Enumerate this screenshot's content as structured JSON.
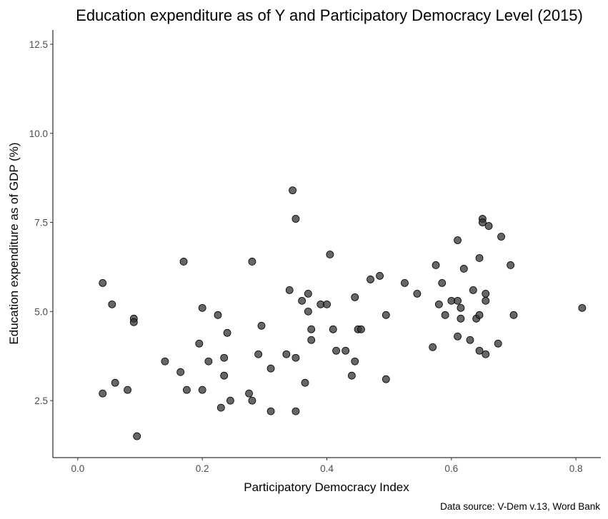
{
  "chart_data": {
    "type": "scatter",
    "title": "Education expenditure as of Y and Participatory Democracy Level (2015)",
    "xlabel": "Participatory Democracy Index",
    "ylabel": "Education expenditure as of GDP (%)",
    "caption": "Data source: V-Dem v.13, Word Bank",
    "xlim": [
      -0.04,
      0.84
    ],
    "ylim": [
      0.9,
      12.9
    ],
    "xticks": [
      0.0,
      0.2,
      0.4,
      0.6,
      0.8
    ],
    "xtick_labels": [
      "0.0",
      "0.2",
      "0.4",
      "0.6",
      "0.8"
    ],
    "yticks": [
      2.5,
      5.0,
      7.5,
      10.0,
      12.5
    ],
    "ytick_labels": [
      "2.5",
      "5.0",
      "7.5",
      "10.0",
      "12.5"
    ],
    "grid": false,
    "legend": "none",
    "point_color": "#333333",
    "points": [
      [
        0.04,
        5.8
      ],
      [
        0.04,
        2.7
      ],
      [
        0.055,
        5.2
      ],
      [
        0.06,
        3.0
      ],
      [
        0.08,
        2.8
      ],
      [
        0.09,
        4.8
      ],
      [
        0.09,
        4.7
      ],
      [
        0.095,
        1.5
      ],
      [
        0.14,
        3.6
      ],
      [
        0.165,
        3.3
      ],
      [
        0.17,
        6.4
      ],
      [
        0.175,
        2.8
      ],
      [
        0.195,
        4.1
      ],
      [
        0.2,
        2.8
      ],
      [
        0.2,
        5.1
      ],
      [
        0.21,
        3.6
      ],
      [
        0.225,
        4.9
      ],
      [
        0.23,
        2.3
      ],
      [
        0.235,
        3.7
      ],
      [
        0.235,
        3.2
      ],
      [
        0.24,
        4.4
      ],
      [
        0.245,
        2.5
      ],
      [
        0.275,
        2.7
      ],
      [
        0.28,
        6.4
      ],
      [
        0.28,
        2.5
      ],
      [
        0.29,
        3.8
      ],
      [
        0.295,
        4.6
      ],
      [
        0.31,
        3.4
      ],
      [
        0.31,
        2.2
      ],
      [
        0.335,
        3.8
      ],
      [
        0.34,
        5.6
      ],
      [
        0.345,
        8.4
      ],
      [
        0.35,
        7.6
      ],
      [
        0.35,
        3.7
      ],
      [
        0.35,
        2.2
      ],
      [
        0.36,
        5.3
      ],
      [
        0.365,
        3.0
      ],
      [
        0.37,
        5.0
      ],
      [
        0.37,
        5.5
      ],
      [
        0.375,
        4.5
      ],
      [
        0.375,
        4.2
      ],
      [
        0.39,
        5.2
      ],
      [
        0.4,
        5.2
      ],
      [
        0.405,
        6.6
      ],
      [
        0.41,
        4.5
      ],
      [
        0.415,
        3.9
      ],
      [
        0.43,
        3.9
      ],
      [
        0.44,
        3.2
      ],
      [
        0.445,
        3.6
      ],
      [
        0.445,
        5.4
      ],
      [
        0.45,
        4.5
      ],
      [
        0.455,
        4.5
      ],
      [
        0.47,
        5.9
      ],
      [
        0.485,
        6.0
      ],
      [
        0.495,
        4.9
      ],
      [
        0.495,
        3.1
      ],
      [
        0.525,
        5.8
      ],
      [
        0.545,
        5.5
      ],
      [
        0.57,
        4.0
      ],
      [
        0.575,
        6.3
      ],
      [
        0.58,
        5.2
      ],
      [
        0.585,
        5.8
      ],
      [
        0.59,
        4.9
      ],
      [
        0.6,
        5.3
      ],
      [
        0.61,
        5.3
      ],
      [
        0.61,
        7.0
      ],
      [
        0.61,
        4.3
      ],
      [
        0.615,
        5.1
      ],
      [
        0.615,
        4.8
      ],
      [
        0.62,
        6.2
      ],
      [
        0.63,
        4.2
      ],
      [
        0.635,
        5.6
      ],
      [
        0.64,
        4.8
      ],
      [
        0.645,
        6.5
      ],
      [
        0.645,
        4.9
      ],
      [
        0.645,
        3.9
      ],
      [
        0.65,
        7.6
      ],
      [
        0.65,
        7.5
      ],
      [
        0.655,
        5.5
      ],
      [
        0.655,
        5.3
      ],
      [
        0.655,
        3.8
      ],
      [
        0.66,
        7.4
      ],
      [
        0.675,
        4.1
      ],
      [
        0.68,
        7.1
      ],
      [
        0.695,
        6.3
      ],
      [
        0.7,
        4.9
      ],
      [
        0.81,
        5.1
      ]
    ]
  }
}
